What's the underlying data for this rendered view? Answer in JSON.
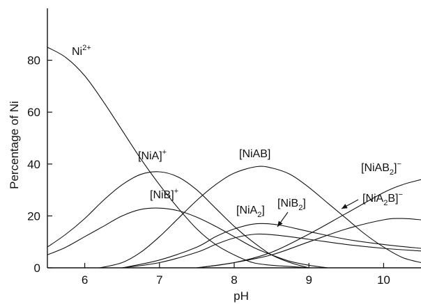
{
  "chart_data": {
    "type": "line",
    "title": "",
    "xlabel": "pH",
    "ylabel": "Percentage of Ni",
    "xlim": [
      5.5,
      10.5
    ],
    "ylim": [
      0,
      100
    ],
    "x_ticks": [
      6,
      7,
      8,
      9,
      10
    ],
    "y_ticks": [
      0,
      20,
      40,
      60,
      80
    ],
    "grid": false,
    "legend": "none (curves labelled directly)",
    "series": [
      {
        "name": "Ni2+",
        "label_parts": [
          {
            "t": "Ni"
          },
          {
            "t": "2+",
            "s": "sup"
          }
        ],
        "points": [
          [
            5.5,
            85
          ],
          [
            5.75,
            81
          ],
          [
            6.0,
            74
          ],
          [
            6.25,
            64
          ],
          [
            6.5,
            53
          ],
          [
            6.75,
            42
          ],
          [
            7.0,
            32
          ],
          [
            7.25,
            23
          ],
          [
            7.5,
            15
          ],
          [
            7.75,
            9
          ],
          [
            8.0,
            5
          ],
          [
            8.25,
            2
          ],
          [
            8.5,
            1
          ],
          [
            8.75,
            0.5
          ],
          [
            9.0,
            0
          ]
        ]
      },
      {
        "name": "[NiA]+",
        "label_parts": [
          {
            "t": "[NiA]"
          },
          {
            "t": "+",
            "s": "sup"
          }
        ],
        "points": [
          [
            5.5,
            8
          ],
          [
            5.75,
            13
          ],
          [
            6.0,
            19
          ],
          [
            6.25,
            26
          ],
          [
            6.5,
            32
          ],
          [
            6.75,
            36
          ],
          [
            7.0,
            37
          ],
          [
            7.25,
            35
          ],
          [
            7.5,
            30
          ],
          [
            7.75,
            23
          ],
          [
            8.0,
            16
          ],
          [
            8.25,
            10
          ],
          [
            8.5,
            5
          ],
          [
            8.75,
            2
          ],
          [
            9.0,
            0
          ]
        ]
      },
      {
        "name": "[NiB]+",
        "label_parts": [
          {
            "t": "[NiB]"
          },
          {
            "t": "+",
            "s": "sup"
          }
        ],
        "points": [
          [
            5.5,
            5
          ],
          [
            5.75,
            8
          ],
          [
            6.0,
            12
          ],
          [
            6.25,
            16
          ],
          [
            6.5,
            20
          ],
          [
            6.75,
            22.5
          ],
          [
            7.0,
            23
          ],
          [
            7.25,
            22
          ],
          [
            7.5,
            19.5
          ],
          [
            7.75,
            16
          ],
          [
            8.0,
            12
          ],
          [
            8.25,
            8
          ],
          [
            8.5,
            5
          ],
          [
            8.75,
            2.5
          ],
          [
            9.0,
            1
          ],
          [
            9.25,
            0
          ]
        ]
      },
      {
        "name": "[NiAB]",
        "label_parts": [
          {
            "t": "[NiAB]"
          }
        ],
        "points": [
          [
            6.2,
            0
          ],
          [
            6.5,
            2
          ],
          [
            6.75,
            6
          ],
          [
            7.0,
            12
          ],
          [
            7.25,
            19
          ],
          [
            7.5,
            26
          ],
          [
            7.75,
            32
          ],
          [
            8.0,
            36.5
          ],
          [
            8.3,
            39
          ],
          [
            8.5,
            38.5
          ],
          [
            8.75,
            36
          ],
          [
            9.0,
            31
          ],
          [
            9.25,
            25
          ],
          [
            9.5,
            19
          ],
          [
            9.75,
            13
          ],
          [
            10.0,
            8
          ],
          [
            10.25,
            4
          ],
          [
            10.5,
            2
          ]
        ]
      },
      {
        "name": "[NiA2]",
        "label_parts": [
          {
            "t": "[NiA"
          },
          {
            "t": "2",
            "s": "sub"
          },
          {
            "t": "]"
          }
        ],
        "points": [
          [
            6.5,
            0
          ],
          [
            7.0,
            3
          ],
          [
            7.5,
            8
          ],
          [
            7.75,
            12
          ],
          [
            8.0,
            15
          ],
          [
            8.3,
            17
          ],
          [
            8.6,
            16.5
          ],
          [
            9.0,
            14
          ],
          [
            9.5,
            11
          ],
          [
            10.0,
            9
          ],
          [
            10.5,
            7.5
          ]
        ]
      },
      {
        "name": "[NiB2]",
        "label_parts": [
          {
            "t": "[NiB"
          },
          {
            "t": "2",
            "s": "sub"
          },
          {
            "t": "]"
          }
        ],
        "points": [
          [
            6.5,
            0
          ],
          [
            7.0,
            2
          ],
          [
            7.5,
            6
          ],
          [
            7.75,
            9
          ],
          [
            8.0,
            11.5
          ],
          [
            8.3,
            13
          ],
          [
            8.6,
            12.5
          ],
          [
            9.0,
            11
          ],
          [
            9.5,
            9
          ],
          [
            10.0,
            7.5
          ],
          [
            10.5,
            6.5
          ]
        ]
      },
      {
        "name": "[NiAB2]-",
        "label_parts": [
          {
            "t": "[NiAB"
          },
          {
            "t": "2",
            "s": "sub"
          },
          {
            "t": "]"
          },
          {
            "t": "−",
            "s": "sup"
          }
        ],
        "points": [
          [
            7.5,
            0
          ],
          [
            8.0,
            2
          ],
          [
            8.5,
            6
          ],
          [
            9.0,
            13
          ],
          [
            9.5,
            21
          ],
          [
            10.0,
            29
          ],
          [
            10.25,
            32
          ],
          [
            10.5,
            34
          ]
        ]
      },
      {
        "name": "[NiA2B]-",
        "label_parts": [
          {
            "t": "[NiA"
          },
          {
            "t": "2",
            "s": "sub"
          },
          {
            "t": "B]"
          },
          {
            "t": "−",
            "s": "sup"
          }
        ],
        "points": [
          [
            7.5,
            0
          ],
          [
            8.0,
            2
          ],
          [
            8.5,
            5
          ],
          [
            9.0,
            10
          ],
          [
            9.5,
            15
          ],
          [
            10.0,
            18.5
          ],
          [
            10.25,
            19
          ],
          [
            10.5,
            18.5
          ]
        ]
      }
    ]
  }
}
